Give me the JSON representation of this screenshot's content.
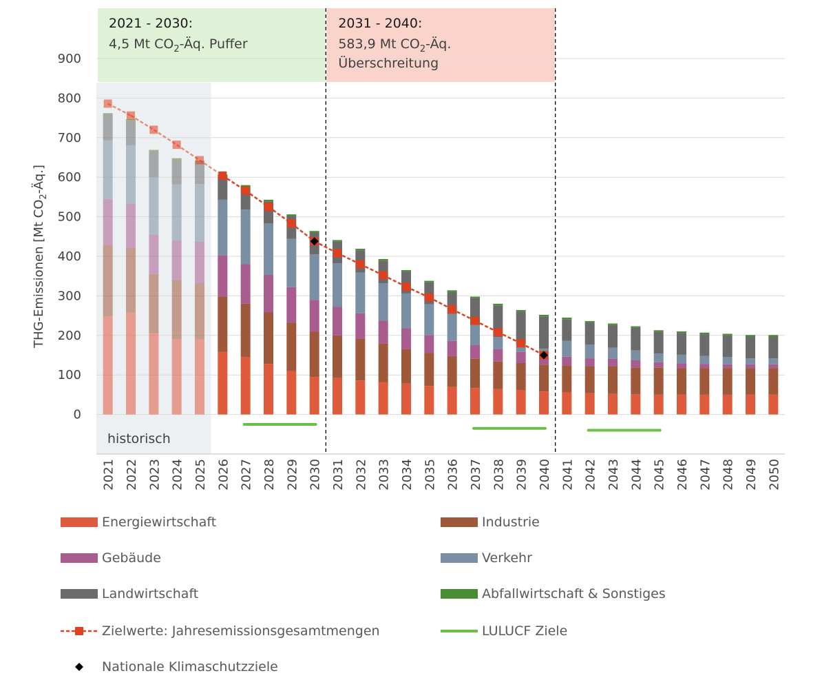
{
  "chart_data": {
    "type": "bar",
    "ylabel": "THG-Emissionen [Mt CO",
    "ylabel_sub": "2",
    "ylabel_end": "-Äq.]",
    "ylim": [
      -100,
      900
    ],
    "yticks": [
      "900",
      "800",
      "700",
      "600",
      "500",
      "400",
      "300",
      "200",
      "100",
      "0",
      "-100"
    ],
    "ytick_values": [
      900,
      800,
      700,
      600,
      500,
      400,
      300,
      200,
      100,
      0,
      -100
    ],
    "categories": [
      "2021",
      "2022",
      "2023",
      "2024",
      "2025",
      "2026",
      "2027",
      "2028",
      "2029",
      "2030",
      "2031",
      "2032",
      "2033",
      "2034",
      "2035",
      "2036",
      "2037",
      "2038",
      "2039",
      "2040",
      "2041",
      "2042",
      "2043",
      "2044",
      "2045",
      "2046",
      "2047",
      "2048",
      "2049",
      "2050"
    ],
    "historic_count": 5,
    "historic_label": "historisch",
    "series": [
      {
        "name": "Energiewirtschaft",
        "color": "#e05a3c",
        "values": [
          248,
          258,
          205,
          190,
          190,
          158,
          145,
          128,
          110,
          95,
          92,
          86,
          82,
          78,
          72,
          70,
          67,
          64,
          62,
          58,
          56,
          54,
          52,
          51,
          50,
          50,
          50,
          50,
          50,
          50
        ]
      },
      {
        "name": "Industrie",
        "color": "#a0583a",
        "values": [
          180,
          163,
          150,
          150,
          142,
          140,
          135,
          130,
          122,
          115,
          108,
          105,
          98,
          88,
          84,
          78,
          74,
          70,
          68,
          68,
          68,
          68,
          70,
          68,
          68,
          67,
          67,
          67,
          67,
          67
        ]
      },
      {
        "name": "Gebäude",
        "color": "#a85d8e",
        "values": [
          117,
          112,
          100,
          100,
          105,
          105,
          100,
          95,
          90,
          80,
          72,
          65,
          57,
          52,
          45,
          38,
          35,
          32,
          28,
          25,
          22,
          20,
          19,
          18,
          14,
          12,
          11,
          10,
          10,
          10
        ]
      },
      {
        "name": "Verkehr",
        "color": "#7a8fa3",
        "values": [
          148,
          148,
          145,
          142,
          146,
          140,
          138,
          130,
          122,
          115,
          110,
          103,
          95,
          88,
          78,
          68,
          50,
          30,
          20,
          15,
          40,
          35,
          28,
          25,
          22,
          22,
          20,
          18,
          15,
          15
        ]
      },
      {
        "name": "Landwirtschaft",
        "color": "#6b6b6b",
        "values": [
          65,
          62,
          65,
          62,
          55,
          60,
          58,
          56,
          58,
          55,
          55,
          56,
          57,
          55,
          55,
          56,
          68,
          80,
          82,
          82,
          55,
          55,
          57,
          57,
          55,
          55,
          55,
          55,
          55,
          55
        ]
      },
      {
        "name": "Abfallwirtschaft & Sonstiges",
        "color": "#4a8c32",
        "values": [
          4,
          4,
          4,
          4,
          4,
          4,
          4,
          4,
          4,
          4,
          4,
          4,
          4,
          4,
          4,
          4,
          4,
          4,
          4,
          4,
          4,
          4,
          4,
          4,
          4,
          4,
          4,
          4,
          4,
          4
        ]
      }
    ],
    "lulucf": {
      "name": "LULUCF Ziele",
      "color": "#6cc04a",
      "segments": [
        {
          "from": "2027",
          "to": "2030",
          "value": -25
        },
        {
          "from": "2037",
          "to": "2040",
          "value": -35
        },
        {
          "from": "2042",
          "to": "2045",
          "value": -40
        }
      ]
    },
    "target_line": {
      "name": "Zielwerte: Jahresemissionsgesamtmengen",
      "color": "#e0401e",
      "x": [
        "2021",
        "2022",
        "2023",
        "2024",
        "2025",
        "2026",
        "2027",
        "2028",
        "2029",
        "2030",
        "2031",
        "2032",
        "2033",
        "2034",
        "2035",
        "2036",
        "2037",
        "2038",
        "2039",
        "2040"
      ],
      "values": [
        786,
        756,
        720,
        682,
        643,
        604,
        566,
        525,
        483,
        438,
        408,
        380,
        352,
        323,
        296,
        266,
        237,
        208,
        180,
        150
      ]
    },
    "national_targets": {
      "name": "Nationale Klimaschutzziele",
      "points": [
        {
          "x": "2030",
          "value": 438
        },
        {
          "x": "2040",
          "value": 150
        }
      ]
    },
    "periods": [
      {
        "from": "2021",
        "to": "2030",
        "color": "#dff2d8",
        "title": "2021 - 2030:",
        "line1_pre": "4,5 Mt CO",
        "line1_sub": "2",
        "line1_post": "-Äq. Puffer",
        "line2": ""
      },
      {
        "from": "2031",
        "to": "2040",
        "color": "#fad3cb",
        "title": "2031 - 2040:",
        "line1_pre": "583,9 Mt CO",
        "line1_sub": "2",
        "line1_post": "-Äq.",
        "line2": "Überschreitung"
      }
    ]
  }
}
